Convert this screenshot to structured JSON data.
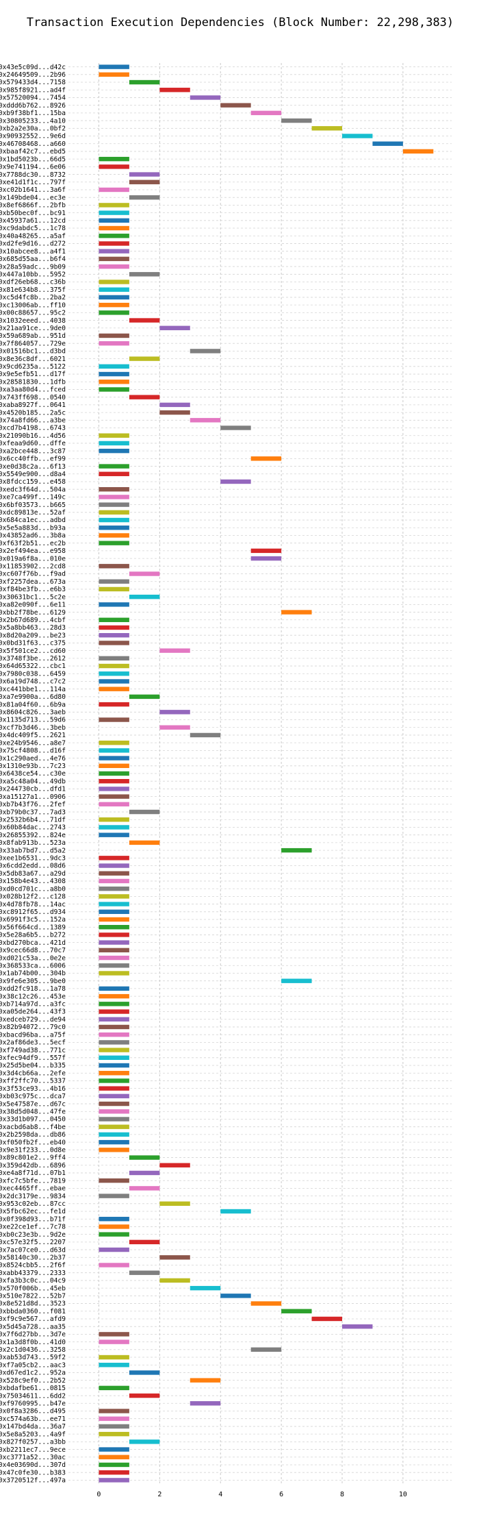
{
  "chart_data": {
    "type": "bar",
    "orientation": "horizontal-gantt",
    "title": "Transaction Execution Dependencies (Block Number: 22,298,383)",
    "xlabel": "",
    "ylabel": "",
    "xlim": [
      -1,
      11.6
    ],
    "xticks": [
      0,
      2,
      4,
      6,
      8,
      10
    ],
    "grid": true,
    "bar_width": 1,
    "palette": [
      "#1f77b4",
      "#ff7f0e",
      "#2ca02c",
      "#d62728",
      "#9467bd",
      "#8c564b",
      "#e377c2",
      "#7f7f7f",
      "#bcbd22",
      "#17becf"
    ],
    "transactions": [
      {
        "label": "0x43e5c09d...d42c",
        "start": 0
      },
      {
        "label": "0x24649509...2b96",
        "start": 0
      },
      {
        "label": "0x579433d4...7158",
        "start": 1
      },
      {
        "label": "0x985f8921...ad4f",
        "start": 2
      },
      {
        "label": "0x57520094...7454",
        "start": 3
      },
      {
        "label": "0xddd6b762...8926",
        "start": 4
      },
      {
        "label": "0xb9f38bf1...15ba",
        "start": 5
      },
      {
        "label": "0x30805233...4a10",
        "start": 6
      },
      {
        "label": "0xb2a2e30a...0bf2",
        "start": 7
      },
      {
        "label": "0x90932552...9e6d",
        "start": 8
      },
      {
        "label": "0x46708468...a660",
        "start": 9
      },
      {
        "label": "0xbaaf42c7...ebd5",
        "start": 10
      },
      {
        "label": "0x1bd5023b...66d5",
        "start": 0
      },
      {
        "label": "0x9e741194...6e06",
        "start": 0
      },
      {
        "label": "0x7788dc30...8732",
        "start": 1
      },
      {
        "label": "0xe41d1f1c...797f",
        "start": 1
      },
      {
        "label": "0xc02b1641...3a6f",
        "start": 0
      },
      {
        "label": "0x149bde04...ec3e",
        "start": 1
      },
      {
        "label": "0x8ef6866f...2bfb",
        "start": 0
      },
      {
        "label": "0xb50bec0f...bc91",
        "start": 0
      },
      {
        "label": "0x45937a61...12cd",
        "start": 0
      },
      {
        "label": "0xc9dabdc5...1c78",
        "start": 0
      },
      {
        "label": "0x40a48265...a5af",
        "start": 0
      },
      {
        "label": "0xd2fe9d16...d272",
        "start": 0
      },
      {
        "label": "0x10abcee8...a4f1",
        "start": 0
      },
      {
        "label": "0x685d55aa...b6f4",
        "start": 0
      },
      {
        "label": "0x28a59adc...9b09",
        "start": 0
      },
      {
        "label": "0x447a10bb...5952",
        "start": 1
      },
      {
        "label": "0xdf26eb68...c36b",
        "start": 0
      },
      {
        "label": "0x81e634b8...375f",
        "start": 0
      },
      {
        "label": "0xc5d4fc8b...2ba2",
        "start": 0
      },
      {
        "label": "0xc13006ab...ff10",
        "start": 0
      },
      {
        "label": "0x00c88657...95c2",
        "start": 0
      },
      {
        "label": "0x1032eeed...4038",
        "start": 1
      },
      {
        "label": "0x21aa91ce...9de0",
        "start": 2
      },
      {
        "label": "0x59a689ab...951d",
        "start": 0
      },
      {
        "label": "0x7f864057...729e",
        "start": 0
      },
      {
        "label": "0x01516bc1...d3bd",
        "start": 3
      },
      {
        "label": "0x8e36c8df...6021",
        "start": 1
      },
      {
        "label": "0x9cd6235a...5122",
        "start": 0
      },
      {
        "label": "0x9e5efb51...d17f",
        "start": 0
      },
      {
        "label": "0x28581830...1dfb",
        "start": 0
      },
      {
        "label": "0xa3aa80d4...fced",
        "start": 0
      },
      {
        "label": "0x743ff698...0540",
        "start": 1
      },
      {
        "label": "0xaba8927f...0641",
        "start": 2
      },
      {
        "label": "0x4520b185...2a5c",
        "start": 2
      },
      {
        "label": "0x74a8fd66...a3be",
        "start": 3
      },
      {
        "label": "0xcd7b4198...6743",
        "start": 4
      },
      {
        "label": "0x21090b16...4d56",
        "start": 0
      },
      {
        "label": "0xfeaa9d60...dffe",
        "start": 0
      },
      {
        "label": "0xa2bce448...3c87",
        "start": 0
      },
      {
        "label": "0x6cc40ffb...ef99",
        "start": 5
      },
      {
        "label": "0xe0d38c2a...6f13",
        "start": 0
      },
      {
        "label": "0x5549e900...d8a4",
        "start": 0
      },
      {
        "label": "0x8fdcc159...e458",
        "start": 4
      },
      {
        "label": "0xedc3f64d...504a",
        "start": 0
      },
      {
        "label": "0xe7ca499f...149c",
        "start": 0
      },
      {
        "label": "0x6bf03573...b665",
        "start": 0
      },
      {
        "label": "0xdc89813e...52af",
        "start": 0
      },
      {
        "label": "0x684ca1ec...adbd",
        "start": 0
      },
      {
        "label": "0x5e5a883d...b93a",
        "start": 0
      },
      {
        "label": "0x43852ad6...3b8a",
        "start": 0
      },
      {
        "label": "0xf63f2b51...ec2b",
        "start": 0
      },
      {
        "label": "0x2ef494ea...e958",
        "start": 5
      },
      {
        "label": "0x019a6f8a...010e",
        "start": 5
      },
      {
        "label": "0x11853902...2cd8",
        "start": 0
      },
      {
        "label": "0xc607f76b...f9ad",
        "start": 1
      },
      {
        "label": "0xf2257dea...673a",
        "start": 0
      },
      {
        "label": "0xf84be3fb...e6b3",
        "start": 0
      },
      {
        "label": "0x30631bc1...5c2e",
        "start": 1
      },
      {
        "label": "0xa82e090f...6e11",
        "start": 0
      },
      {
        "label": "0xbb2f78be...6129",
        "start": 6
      },
      {
        "label": "0x2b67d689...4cbf",
        "start": 0
      },
      {
        "label": "0x5a8bb463...28d3",
        "start": 0
      },
      {
        "label": "0x8d20a209...be23",
        "start": 0
      },
      {
        "label": "0x0bd31f63...c375",
        "start": 0
      },
      {
        "label": "0x5f501ce2...cd60",
        "start": 2
      },
      {
        "label": "0x3748f3be...2612",
        "start": 0
      },
      {
        "label": "0x64d65322...cbc1",
        "start": 0
      },
      {
        "label": "0x7980c038...6459",
        "start": 0
      },
      {
        "label": "0x6a19d748...c7c2",
        "start": 0
      },
      {
        "label": "0xc441bbe1...114a",
        "start": 0
      },
      {
        "label": "0xa7e9900a...6d80",
        "start": 1
      },
      {
        "label": "0x81a04f60...6b9a",
        "start": 0
      },
      {
        "label": "0x8604c826...3aeb",
        "start": 2
      },
      {
        "label": "0x1135d713...59d6",
        "start": 0
      },
      {
        "label": "0xcf7b3d46...3beb",
        "start": 2
      },
      {
        "label": "0x4dc409f5...2621",
        "start": 3
      },
      {
        "label": "0xe24b9546...a8e7",
        "start": 0
      },
      {
        "label": "0x75cf4808...d16f",
        "start": 0
      },
      {
        "label": "0x1c290aed...4e76",
        "start": 0
      },
      {
        "label": "0x1310e93b...7c23",
        "start": 0
      },
      {
        "label": "0x6438ce54...c30e",
        "start": 0
      },
      {
        "label": "0xa5c48a04...49db",
        "start": 0
      },
      {
        "label": "0x244730cb...dfd1",
        "start": 0
      },
      {
        "label": "0xa15127a1...0906",
        "start": 0
      },
      {
        "label": "0xb7b43f76...2fef",
        "start": 0
      },
      {
        "label": "0xb79b0c37...7ad3",
        "start": 1
      },
      {
        "label": "0x2532b6b4...71df",
        "start": 0
      },
      {
        "label": "0x60b84dac...2743",
        "start": 0
      },
      {
        "label": "0x26855392...824e",
        "start": 0
      },
      {
        "label": "0x8fab913b...523a",
        "start": 1
      },
      {
        "label": "0x33ab7bd7...d5a2",
        "start": 6
      },
      {
        "label": "0xee1b6531...9dc3",
        "start": 0
      },
      {
        "label": "0x6cdd2edd...08d6",
        "start": 0
      },
      {
        "label": "0x5db83a67...a29d",
        "start": 0
      },
      {
        "label": "0x158b4e43...4308",
        "start": 0
      },
      {
        "label": "0xd0cd701c...a8b0",
        "start": 0
      },
      {
        "label": "0x028b12f2...c128",
        "start": 0
      },
      {
        "label": "0x4d78fb78...14ac",
        "start": 0
      },
      {
        "label": "0xc8912f65...d934",
        "start": 0
      },
      {
        "label": "0x6991f3c5...152a",
        "start": 0
      },
      {
        "label": "0x56f664cd...1389",
        "start": 0
      },
      {
        "label": "0x5e28a6b5...b272",
        "start": 0
      },
      {
        "label": "0xbd270bca...421d",
        "start": 0
      },
      {
        "label": "0x9cec66d8...70c7",
        "start": 0
      },
      {
        "label": "0xd021c53a...0e2e",
        "start": 0
      },
      {
        "label": "0x368533ca...6006",
        "start": 0
      },
      {
        "label": "0x1ab74b00...304b",
        "start": 0
      },
      {
        "label": "0x9fe6e305...9be0",
        "start": 6
      },
      {
        "label": "0xdd2fc918...1a78",
        "start": 0
      },
      {
        "label": "0x38c12c26...453e",
        "start": 0
      },
      {
        "label": "0xb714a97d...a3fc",
        "start": 0
      },
      {
        "label": "0xa05de264...43f3",
        "start": 0
      },
      {
        "label": "0xedceb729...de94",
        "start": 0
      },
      {
        "label": "0x82b94072...79c0",
        "start": 0
      },
      {
        "label": "0xbacd96ba...a75f",
        "start": 0
      },
      {
        "label": "0x2af86de3...5ecf",
        "start": 0
      },
      {
        "label": "0xf749ad38...771c",
        "start": 0
      },
      {
        "label": "0xfec94df9...557f",
        "start": 0
      },
      {
        "label": "0x25d5be04...b335",
        "start": 0
      },
      {
        "label": "0x3d4cb66a...2efe",
        "start": 0
      },
      {
        "label": "0xff2ffc70...5337",
        "start": 0
      },
      {
        "label": "0x3f53ce93...4b16",
        "start": 0
      },
      {
        "label": "0xb03c975c...dca7",
        "start": 0
      },
      {
        "label": "0x5e47587e...d67c",
        "start": 0
      },
      {
        "label": "0x38d5d048...47fe",
        "start": 0
      },
      {
        "label": "0x33d1b097...0450",
        "start": 0
      },
      {
        "label": "0xacbd6ab8...f4be",
        "start": 0
      },
      {
        "label": "0x2b2598da...db86",
        "start": 0
      },
      {
        "label": "0xf050fb2f...eb40",
        "start": 0
      },
      {
        "label": "0x9e31f233...0d8e",
        "start": 0
      },
      {
        "label": "0x89c801e2...9ff4",
        "start": 1
      },
      {
        "label": "0x359d42db...6896",
        "start": 2
      },
      {
        "label": "0xe4a8f71d...07b1",
        "start": 1
      },
      {
        "label": "0xfc7c5bfe...7819",
        "start": 0
      },
      {
        "label": "0xec4465ff...ebae",
        "start": 1
      },
      {
        "label": "0x2dc3179e...9834",
        "start": 0
      },
      {
        "label": "0x953c02eb...87cc",
        "start": 2
      },
      {
        "label": "0x5fbc62ec...fe1d",
        "start": 4
      },
      {
        "label": "0x0f398d93...b71f",
        "start": 0
      },
      {
        "label": "0xe22ce1ef...7c78",
        "start": 0
      },
      {
        "label": "0xb0c23e3b...9d2e",
        "start": 0
      },
      {
        "label": "0xc57e32f5...2207",
        "start": 1
      },
      {
        "label": "0x7ac07ce0...d63d",
        "start": 0
      },
      {
        "label": "0x58140c30...2b37",
        "start": 2
      },
      {
        "label": "0x8524cbb5...2f6f",
        "start": 0
      },
      {
        "label": "0xabb43379...2333",
        "start": 1
      },
      {
        "label": "0xfa3b3c0c...04c9",
        "start": 2
      },
      {
        "label": "0x570f006b...45eb",
        "start": 3
      },
      {
        "label": "0x510e7822...52b7",
        "start": 4
      },
      {
        "label": "0x8e521d8d...3523",
        "start": 5
      },
      {
        "label": "0xbbda0360...f081",
        "start": 6
      },
      {
        "label": "0xf9c9e567...afd9",
        "start": 7
      },
      {
        "label": "0x5d45a728...aa35",
        "start": 8
      },
      {
        "label": "0x7f6d27bb...3d7e",
        "start": 0
      },
      {
        "label": "0x1a3d8f0b...41d0",
        "start": 0
      },
      {
        "label": "0x2c1d0436...3258",
        "start": 5
      },
      {
        "label": "0xab53d743...59f2",
        "start": 0
      },
      {
        "label": "0xf7a05cb2...aac3",
        "start": 0
      },
      {
        "label": "0xd67ed1c2...952a",
        "start": 1
      },
      {
        "label": "0x528c9ef0...2b52",
        "start": 3
      },
      {
        "label": "0xbdafbe61...0815",
        "start": 0
      },
      {
        "label": "0x75034611...6dd2",
        "start": 1
      },
      {
        "label": "0xf9760995...b47e",
        "start": 3
      },
      {
        "label": "0x0f8a3286...d495",
        "start": 0
      },
      {
        "label": "0xc574a63b...ee71",
        "start": 0
      },
      {
        "label": "0x147bd4da...36a7",
        "start": 0
      },
      {
        "label": "0x5e8a5203...4a9f",
        "start": 0
      },
      {
        "label": "0x827f0257...a3bb",
        "start": 1
      },
      {
        "label": "0xb2211ec7...9ece",
        "start": 0
      },
      {
        "label": "0xc3771a52...30ac",
        "start": 0
      },
      {
        "label": "0x4e03690d...307d",
        "start": 0
      },
      {
        "label": "0x47c0fe30...b383",
        "start": 0
      },
      {
        "label": "0x3720512f...497a",
        "start": 0
      }
    ]
  }
}
